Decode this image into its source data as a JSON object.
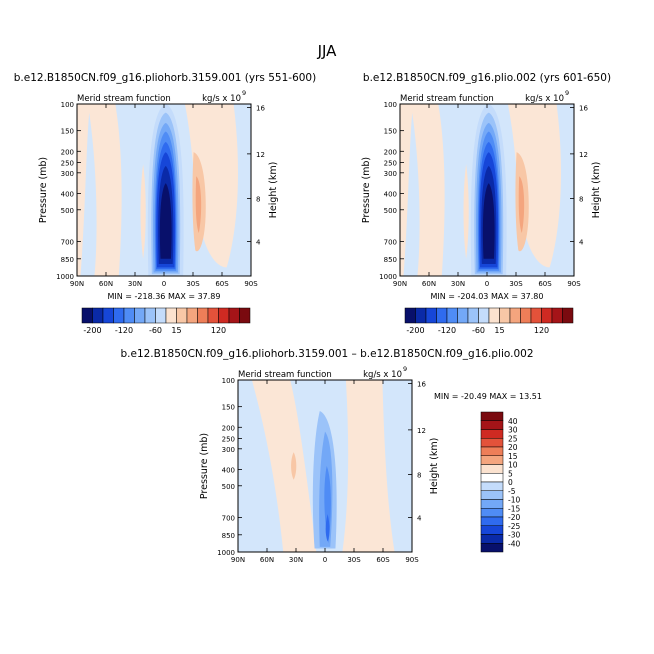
{
  "figure": {
    "title": "JJA"
  },
  "chart_data": [
    {
      "type": "heatmap",
      "title": "b.e12.B1850CN.f09_g16.pliohorb.3159.001 (yrs 551-600)",
      "subtitle_left": "Merid stream function",
      "subtitle_right": "kg/s x 10",
      "subtitle_exp": "9",
      "ylabel": "Pressure (mb)",
      "ylabel_right": "Height (km)",
      "x_ticks": [
        "90N",
        "60N",
        "30N",
        "0",
        "30S",
        "60S",
        "90S"
      ],
      "y_ticks": [
        "100",
        "150",
        "200",
        "250",
        "300",
        "400",
        "500",
        "700",
        "850",
        "1000"
      ],
      "y_ticks_right": [
        "16",
        "12",
        "8",
        "4"
      ],
      "min_max_text": "MIN = -218.36    MAX =  37.89",
      "colorbar_labels": [
        "-200",
        "-120",
        "-60",
        "15",
        "120"
      ]
    },
    {
      "type": "heatmap",
      "title": "b.e12.B1850CN.f09_g16.plio.002 (yrs 601-650)",
      "subtitle_left": "Merid stream function",
      "subtitle_right": "kg/s x 10",
      "subtitle_exp": "9",
      "ylabel": "Pressure (mb)",
      "ylabel_right": "Height (km)",
      "x_ticks": [
        "90N",
        "60N",
        "30N",
        "0",
        "30S",
        "60S",
        "90S"
      ],
      "y_ticks": [
        "100",
        "150",
        "200",
        "250",
        "300",
        "400",
        "500",
        "700",
        "850",
        "1000"
      ],
      "y_ticks_right": [
        "16",
        "12",
        "8",
        "4"
      ],
      "min_max_text": "MIN = -204.03    MAX =  37.80",
      "colorbar_labels": [
        "-200",
        "-120",
        "-60",
        "15",
        "120"
      ]
    },
    {
      "type": "heatmap",
      "title": "b.e12.B1850CN.f09_g16.pliohorb.3159.001 – b.e12.B1850CN.f09_g16.plio.002",
      "subtitle_left": "Merid stream function",
      "subtitle_right": "kg/s x 10",
      "subtitle_exp": "9",
      "ylabel": "Pressure (mb)",
      "ylabel_right": "Height (km)",
      "x_ticks": [
        "90N",
        "60N",
        "30N",
        "0",
        "30S",
        "60S",
        "90S"
      ],
      "y_ticks": [
        "100",
        "150",
        "200",
        "250",
        "300",
        "400",
        "500",
        "700",
        "850",
        "1000"
      ],
      "y_ticks_right": [
        "16",
        "12",
        "8",
        "4"
      ],
      "min_max_text": "MIN = -20.49    MAX =  13.51",
      "colorbar_labels": [
        "40",
        "30",
        "25",
        "20",
        "15",
        "10",
        "5",
        "0",
        "-5",
        "-10",
        "-15",
        "-20",
        "-25",
        "-30",
        "-40"
      ]
    }
  ],
  "colors": {
    "top_colorbar": [
      "#08106b",
      "#0a2aa8",
      "#1646d8",
      "#2f6bef",
      "#4f8cf5",
      "#73a8f7",
      "#9bc3f9",
      "#c4dcfb",
      "#fbe2cf",
      "#f8c7a6",
      "#f4a57e",
      "#ee7e58",
      "#e3523a",
      "#cf2a22",
      "#a51418",
      "#7a0a0f"
    ],
    "diff_colorbar": [
      "#7a0a0f",
      "#a51418",
      "#cf2a22",
      "#e3523a",
      "#ee7e58",
      "#f4a57e",
      "#fbe2cf",
      "#ffffff",
      "#c4dcfb",
      "#9bc3f9",
      "#73a8f7",
      "#4f8cf5",
      "#2f6bef",
      "#1646d8",
      "#0a2aa8",
      "#08106b"
    ],
    "light_blue": "#d3e6fb",
    "light_peach": "#fbe6d6"
  }
}
